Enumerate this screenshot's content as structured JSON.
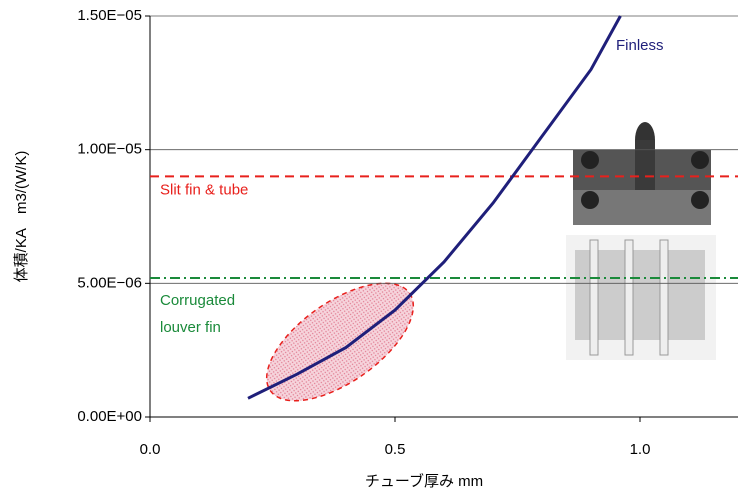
{
  "chart_data": {
    "type": "line",
    "x_label": "チューブ厚み mm",
    "y_label": "体積/KA　m3/(W/K)",
    "xlim": [
      0,
      1.2
    ],
    "ylim": [
      0,
      1.5e-05
    ],
    "xticks": [
      {
        "value": 0,
        "label": "0.0"
      },
      0.5,
      {
        "value": 1,
        "label": "1.0"
      }
    ],
    "yticks": [
      {
        "value": 0,
        "label": "0.00E+00"
      },
      {
        "value": 5e-06,
        "label": "5.00E−06"
      },
      {
        "value": 1e-05,
        "label": "1.00E−05"
      },
      {
        "value": 1.5e-05,
        "label": "1.50E−05"
      }
    ],
    "grid": true,
    "series": [
      {
        "name": "Finless",
        "color": "#1f1f7a",
        "x": [
          0.2,
          0.3,
          0.4,
          0.5,
          0.6,
          0.7,
          0.8,
          0.9,
          0.96
        ],
        "values": [
          7e-07,
          1.6e-06,
          2.6e-06,
          4e-06,
          5.8e-06,
          8e-06,
          1.05e-05,
          1.3e-05,
          1.5e-05
        ]
      }
    ],
    "reference_lines": [
      {
        "name": "Slit fin & tube",
        "value": 9e-06,
        "color": "#e8201c",
        "dash": "9 6"
      },
      {
        "name": [
          "Corrugated",
          "louver fin"
        ],
        "value": 5.2e-06,
        "color": "#1a8a3a",
        "dash": "10 4 2 4"
      }
    ]
  }
}
